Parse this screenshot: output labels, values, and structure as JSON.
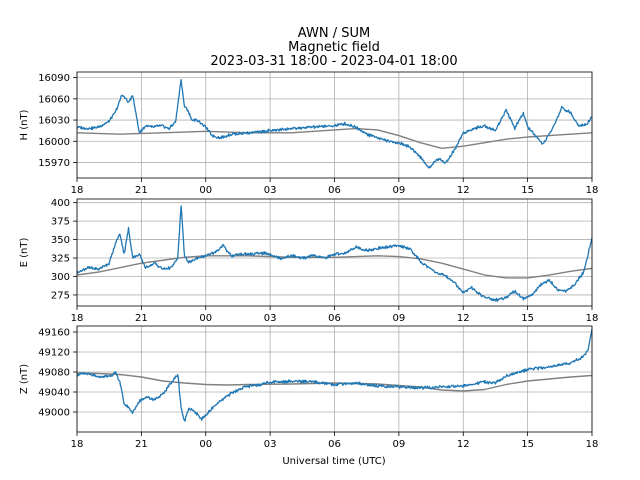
{
  "chart_data": {
    "type": "line",
    "title": [
      "AWN / SUM",
      "Magnetic field",
      "2023-03-31 18:00 - 2023-04-01 18:00"
    ],
    "xlabel": "Universal time (UTC)",
    "x_tick_labels": [
      "18",
      "21",
      "00",
      "03",
      "06",
      "09",
      "12",
      "15",
      "18"
    ],
    "x_tick_hours": [
      0,
      3,
      6,
      9,
      12,
      15,
      18,
      21,
      24
    ],
    "x_range_hours": [
      0,
      24
    ],
    "grid": true,
    "colors": {
      "measured": "#1f77b4",
      "baseline": "#808080"
    },
    "panels": [
      {
        "ylabel": "H (nT)",
        "ylim": [
          15948,
          16098
        ],
        "yticks": [
          15970,
          16000,
          16030,
          16060,
          16090
        ],
        "ytick_labels": [
          "15970",
          "16000",
          "16030",
          "16060",
          "16090"
        ],
        "series": [
          {
            "role": "measured",
            "x_hours": [
              0,
              0.5,
              1,
              1.5,
              1.8,
              2.1,
              2.4,
              2.6,
              2.9,
              3.2,
              3.5,
              3.9,
              4.3,
              4.6,
              4.85,
              5.0,
              5.15,
              5.35,
              5.6,
              6.0,
              6.3,
              6.7,
              7.2,
              8,
              9,
              10,
              11,
              12,
              12.5,
              13,
              13.5,
              14,
              14.5,
              15,
              15.5,
              16,
              16.4,
              16.8,
              17.2,
              17.6,
              18,
              18.5,
              19,
              19.5,
              20,
              20.4,
              20.8,
              21,
              21.3,
              21.7,
              22.2,
              22.6,
              23,
              23.4,
              23.8,
              24
            ],
            "values": [
              16020,
              16018,
              16020,
              16028,
              16042,
              16066,
              16055,
              16065,
              16012,
              16022,
              16020,
              16022,
              16018,
              16028,
              16088,
              16050,
              16045,
              16030,
              16030,
              16020,
              16008,
              16005,
              16010,
              16012,
              16015,
              16018,
              16020,
              16022,
              16025,
              16020,
              16010,
              16005,
              16000,
              15998,
              15992,
              15978,
              15962,
              15975,
              15970,
              15988,
              16012,
              16018,
              16022,
              16015,
              16045,
              16018,
              16040,
              16020,
              16010,
              15995,
              16020,
              16048,
              16040,
              16022,
              16025,
              16035
            ]
          },
          {
            "role": "baseline",
            "x_hours": [
              0,
              2,
              4,
              6,
              8,
              10,
              12,
              13,
              14,
              15,
              16,
              17,
              18,
              19,
              20,
              21,
              22,
              23,
              24
            ],
            "values": [
              16012,
              16010,
              16012,
              16014,
              16012,
              16012,
              16016,
              16018,
              16016,
              16008,
              15998,
              15990,
              15993,
              15998,
              16003,
              16006,
              16008,
              16010,
              16012
            ]
          }
        ]
      },
      {
        "ylabel": "E (nT)",
        "ylim": [
          260,
          405
        ],
        "yticks": [
          275,
          300,
          325,
          350,
          375,
          400
        ],
        "ytick_labels": [
          "275",
          "300",
          "325",
          "350",
          "375",
          "400"
        ],
        "series": [
          {
            "role": "measured",
            "x_hours": [
              0,
              0.5,
              1,
              1.5,
              1.8,
              2.0,
              2.2,
              2.4,
              2.6,
              2.9,
              3.2,
              3.6,
              4.0,
              4.4,
              4.7,
              4.85,
              5.0,
              5.2,
              5.6,
              6.0,
              6.4,
              6.8,
              7.2,
              7.6,
              8.2,
              8.6,
              9.0,
              9.5,
              10,
              10.5,
              11,
              11.5,
              12,
              12.5,
              13,
              13.5,
              14,
              14.5,
              15,
              15.5,
              16,
              16.4,
              16.8,
              17.2,
              17.6,
              18,
              18.4,
              18.8,
              19.2,
              19.6,
              20,
              20.4,
              20.8,
              21.2,
              21.6,
              22,
              22.4,
              22.8,
              23.2,
              23.6,
              24
            ],
            "values": [
              305,
              312,
              310,
              318,
              345,
              358,
              330,
              365,
              325,
              330,
              312,
              318,
              310,
              312,
              325,
              398,
              330,
              318,
              325,
              328,
              332,
              342,
              328,
              330,
              330,
              332,
              330,
              325,
              328,
              325,
              328,
              325,
              330,
              332,
              340,
              335,
              338,
              340,
              342,
              338,
              320,
              312,
              305,
              300,
              292,
              278,
              285,
              275,
              270,
              268,
              272,
              280,
              270,
              275,
              288,
              295,
              282,
              280,
              290,
              305,
              352
            ]
          },
          {
            "role": "baseline",
            "x_hours": [
              0,
              1,
              2,
              3,
              4,
              5,
              6,
              8,
              10,
              12,
              14,
              15,
              16,
              17,
              18,
              19,
              20,
              21,
              22,
              23,
              24
            ],
            "values": [
              302,
              306,
              312,
              318,
              322,
              326,
              328,
              328,
              326,
              326,
              328,
              327,
              324,
              318,
              310,
              302,
              298,
              298,
              302,
              307,
              311
            ]
          }
        ]
      },
      {
        "ylabel": "Z (nT)",
        "ylim": [
          48960,
          49172
        ],
        "yticks": [
          49000,
          49040,
          49080,
          49120,
          49160
        ],
        "ytick_labels": [
          "49000",
          "49040",
          "49080",
          "49120",
          "49160"
        ],
        "series": [
          {
            "role": "measured",
            "x_hours": [
              0,
              0.5,
              1,
              1.5,
              1.8,
              2.0,
              2.2,
              2.4,
              2.6,
              2.9,
              3.2,
              3.6,
              4.0,
              4.4,
              4.7,
              4.85,
              5.0,
              5.2,
              5.5,
              5.8,
              6.1,
              6.4,
              6.8,
              7.2,
              7.8,
              8.5,
              9,
              10,
              11,
              12,
              13,
              14,
              15,
              16,
              17,
              18,
              19,
              19.5,
              20,
              21,
              22,
              23,
              23.5,
              23.8,
              24
            ],
            "values": [
              49075,
              49076,
              49070,
              49072,
              49078,
              49060,
              49015,
              49010,
              48998,
              49022,
              49030,
              49025,
              49035,
              49060,
              49075,
              49010,
              48980,
              49008,
              49000,
              48985,
              48998,
              49012,
              49025,
              49038,
              49050,
              49055,
              49060,
              49062,
              49060,
              49055,
              49058,
              49052,
              49050,
              49048,
              49050,
              49052,
              49060,
              49058,
              49072,
              49085,
              49090,
              49098,
              49108,
              49120,
              49165
            ]
          },
          {
            "role": "baseline",
            "x_hours": [
              0,
              1,
              2,
              3,
              4,
              5,
              6,
              7,
              8,
              10,
              12,
              14,
              16,
              17,
              18,
              19,
              20,
              21,
              22,
              23,
              24
            ],
            "values": [
              49078,
              49077,
              49075,
              49070,
              49062,
              49058,
              49055,
              49054,
              49055,
              49056,
              49058,
              49056,
              49050,
              49044,
              49042,
              49045,
              49055,
              49062,
              49066,
              49070,
              49073
            ]
          }
        ]
      }
    ]
  }
}
